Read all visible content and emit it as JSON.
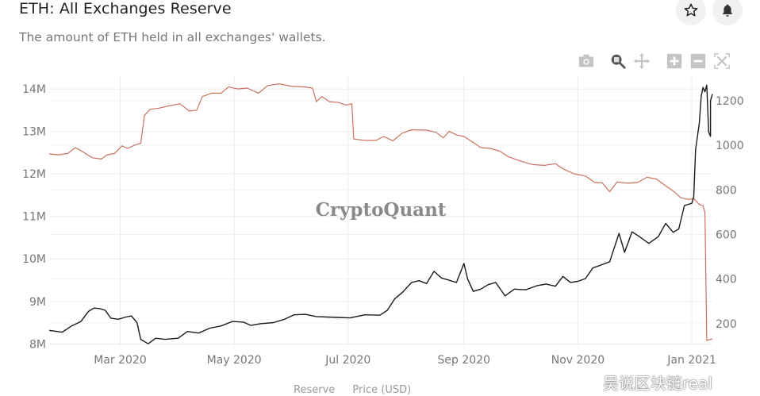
{
  "header": {
    "title": "ETH: All Exchanges Reserve",
    "subtitle": "The amount of ETH held in all exchanges' wallets.",
    "star_icon": "star-icon",
    "bell_icon": "bell-icon"
  },
  "modebar": [
    "camera-icon",
    "zoom-icon",
    "pan-icon",
    "zoom-in-icon",
    "zoom-out-icon",
    "autoscale-icon"
  ],
  "watermark": "CryptoQuant",
  "footer_watermark": "吴说区块链real",
  "colors": {
    "reserve": "#c8725e",
    "price": "#1a1a1a",
    "grid": "#ececec",
    "tick": "#777777"
  },
  "chart_data": {
    "type": "line",
    "title": "ETH: All Exchanges Reserve",
    "x_ticks": [
      "Mar 2020",
      "May 2020",
      "Jul 2020",
      "Sep 2020",
      "Nov 2020",
      "Jan 2021"
    ],
    "x_tick_dates": [
      "2020-03-01",
      "2020-05-01",
      "2020-07-01",
      "2020-09-01",
      "2020-11-01",
      "2021-01-01"
    ],
    "x_range": [
      "2020-01-23",
      "2021-01-12"
    ],
    "y_left": {
      "label": "Reserve",
      "ticks": [
        "8M",
        "9M",
        "10M",
        "11M",
        "12M",
        "13M",
        "14M"
      ],
      "tick_values": [
        8000000,
        9000000,
        10000000,
        11000000,
        12000000,
        13000000,
        14000000
      ],
      "range": [
        7950000,
        14300000
      ]
    },
    "y_right": {
      "label": "Price (USD)",
      "ticks": [
        "200",
        "400",
        "600",
        "800",
        "1000",
        "1200"
      ],
      "tick_values": [
        200,
        400,
        600,
        800,
        1000,
        1200
      ],
      "range": [
        100,
        1310
      ]
    },
    "grid": true,
    "legend": {
      "placement": "bottom",
      "entries": [
        "Reserve",
        "Price (USD)"
      ]
    },
    "series": [
      {
        "name": "Reserve",
        "axis": "left",
        "points": [
          [
            "2020-01-23",
            12470000
          ],
          [
            "2020-01-28",
            12450000
          ],
          [
            "2020-02-02",
            12480000
          ],
          [
            "2020-02-06",
            12620000
          ],
          [
            "2020-02-10",
            12520000
          ],
          [
            "2020-02-15",
            12380000
          ],
          [
            "2020-02-20",
            12350000
          ],
          [
            "2020-02-23",
            12450000
          ],
          [
            "2020-02-27",
            12480000
          ],
          [
            "2020-03-02",
            12660000
          ],
          [
            "2020-03-05",
            12600000
          ],
          [
            "2020-03-09",
            12680000
          ],
          [
            "2020-03-12",
            12720000
          ],
          [
            "2020-03-14",
            13380000
          ],
          [
            "2020-03-17",
            13520000
          ],
          [
            "2020-03-22",
            13550000
          ],
          [
            "2020-03-27",
            13600000
          ],
          [
            "2020-04-02",
            13650000
          ],
          [
            "2020-04-07",
            13480000
          ],
          [
            "2020-04-11",
            13500000
          ],
          [
            "2020-04-14",
            13820000
          ],
          [
            "2020-04-19",
            13900000
          ],
          [
            "2020-04-24",
            13900000
          ],
          [
            "2020-04-28",
            14050000
          ],
          [
            "2020-05-03",
            14000000
          ],
          [
            "2020-05-08",
            14020000
          ],
          [
            "2020-05-14",
            13900000
          ],
          [
            "2020-05-19",
            14080000
          ],
          [
            "2020-05-25",
            14120000
          ],
          [
            "2020-06-01",
            14060000
          ],
          [
            "2020-06-07",
            14050000
          ],
          [
            "2020-06-12",
            14020000
          ],
          [
            "2020-06-14",
            13700000
          ],
          [
            "2020-06-17",
            13820000
          ],
          [
            "2020-06-21",
            13700000
          ],
          [
            "2020-06-26",
            13680000
          ],
          [
            "2020-06-30",
            13620000
          ],
          [
            "2020-07-03",
            13650000
          ],
          [
            "2020-07-04",
            12820000
          ],
          [
            "2020-07-10",
            12790000
          ],
          [
            "2020-07-16",
            12790000
          ],
          [
            "2020-07-20",
            12880000
          ],
          [
            "2020-07-25",
            12780000
          ],
          [
            "2020-07-30",
            12960000
          ],
          [
            "2020-08-04",
            13040000
          ],
          [
            "2020-08-12",
            13030000
          ],
          [
            "2020-08-17",
            12980000
          ],
          [
            "2020-08-21",
            12850000
          ],
          [
            "2020-08-24",
            13000000
          ],
          [
            "2020-08-28",
            12920000
          ],
          [
            "2020-09-01",
            12880000
          ],
          [
            "2020-09-06",
            12740000
          ],
          [
            "2020-09-10",
            12620000
          ],
          [
            "2020-09-15",
            12600000
          ],
          [
            "2020-09-20",
            12540000
          ],
          [
            "2020-09-25",
            12400000
          ],
          [
            "2020-10-02",
            12290000
          ],
          [
            "2020-10-08",
            12220000
          ],
          [
            "2020-10-14",
            12200000
          ],
          [
            "2020-10-20",
            12240000
          ],
          [
            "2020-10-24",
            12120000
          ],
          [
            "2020-10-30",
            12000000
          ],
          [
            "2020-11-05",
            11950000
          ],
          [
            "2020-11-10",
            11800000
          ],
          [
            "2020-11-14",
            11790000
          ],
          [
            "2020-11-18",
            11580000
          ],
          [
            "2020-11-22",
            11810000
          ],
          [
            "2020-11-28",
            11780000
          ],
          [
            "2020-12-03",
            11800000
          ],
          [
            "2020-12-08",
            11920000
          ],
          [
            "2020-12-13",
            11880000
          ],
          [
            "2020-12-18",
            11720000
          ],
          [
            "2020-12-22",
            11600000
          ],
          [
            "2020-12-26",
            11440000
          ],
          [
            "2020-12-30",
            11400000
          ],
          [
            "2021-01-02",
            11420000
          ],
          [
            "2021-01-05",
            11280000
          ],
          [
            "2021-01-07",
            11250000
          ],
          [
            "2021-01-08",
            11100000
          ],
          [
            "2021-01-09",
            8080000
          ],
          [
            "2021-01-12",
            8120000
          ]
        ]
      },
      {
        "name": "Price (USD)",
        "axis": "right",
        "points": [
          [
            "2020-01-23",
            170
          ],
          [
            "2020-01-30",
            162
          ],
          [
            "2020-02-04",
            190
          ],
          [
            "2020-02-09",
            210
          ],
          [
            "2020-02-13",
            255
          ],
          [
            "2020-02-16",
            270
          ],
          [
            "2020-02-19",
            268
          ],
          [
            "2020-02-22",
            260
          ],
          [
            "2020-02-25",
            225
          ],
          [
            "2020-02-29",
            220
          ],
          [
            "2020-03-04",
            230
          ],
          [
            "2020-03-07",
            235
          ],
          [
            "2020-03-10",
            205
          ],
          [
            "2020-03-12",
            130
          ],
          [
            "2020-03-16",
            110
          ],
          [
            "2020-03-20",
            135
          ],
          [
            "2020-03-25",
            130
          ],
          [
            "2020-04-01",
            135
          ],
          [
            "2020-04-06",
            165
          ],
          [
            "2020-04-12",
            158
          ],
          [
            "2020-04-18",
            180
          ],
          [
            "2020-04-24",
            190
          ],
          [
            "2020-04-30",
            210
          ],
          [
            "2020-05-06",
            207
          ],
          [
            "2020-05-10",
            192
          ],
          [
            "2020-05-15",
            200
          ],
          [
            "2020-05-22",
            205
          ],
          [
            "2020-05-28",
            220
          ],
          [
            "2020-06-02",
            240
          ],
          [
            "2020-06-08",
            242
          ],
          [
            "2020-06-14",
            232
          ],
          [
            "2020-06-20",
            230
          ],
          [
            "2020-06-26",
            228
          ],
          [
            "2020-07-02",
            226
          ],
          [
            "2020-07-10",
            240
          ],
          [
            "2020-07-18",
            238
          ],
          [
            "2020-07-22",
            260
          ],
          [
            "2020-07-26",
            312
          ],
          [
            "2020-07-30",
            340
          ],
          [
            "2020-08-04",
            385
          ],
          [
            "2020-08-08",
            393
          ],
          [
            "2020-08-12",
            380
          ],
          [
            "2020-08-16",
            435
          ],
          [
            "2020-08-20",
            405
          ],
          [
            "2020-08-24",
            395
          ],
          [
            "2020-08-28",
            385
          ],
          [
            "2020-09-01",
            470
          ],
          [
            "2020-09-03",
            400
          ],
          [
            "2020-09-06",
            345
          ],
          [
            "2020-09-10",
            355
          ],
          [
            "2020-09-14",
            375
          ],
          [
            "2020-09-18",
            385
          ],
          [
            "2020-09-23",
            325
          ],
          [
            "2020-09-28",
            355
          ],
          [
            "2020-10-04",
            352
          ],
          [
            "2020-10-10",
            370
          ],
          [
            "2020-10-15",
            378
          ],
          [
            "2020-10-20",
            368
          ],
          [
            "2020-10-24",
            412
          ],
          [
            "2020-10-28",
            385
          ],
          [
            "2020-11-01",
            390
          ],
          [
            "2020-11-05",
            402
          ],
          [
            "2020-11-09",
            450
          ],
          [
            "2020-11-14",
            465
          ],
          [
            "2020-11-18",
            478
          ],
          [
            "2020-11-23",
            605
          ],
          [
            "2020-11-26",
            520
          ],
          [
            "2020-11-30",
            612
          ],
          [
            "2020-12-04",
            590
          ],
          [
            "2020-12-09",
            560
          ],
          [
            "2020-12-14",
            590
          ],
          [
            "2020-12-18",
            650
          ],
          [
            "2020-12-22",
            610
          ],
          [
            "2020-12-25",
            625
          ],
          [
            "2020-12-28",
            730
          ],
          [
            "2021-01-01",
            740
          ],
          [
            "2021-01-02",
            770
          ],
          [
            "2021-01-03",
            980
          ],
          [
            "2021-01-05",
            1100
          ],
          [
            "2021-01-06",
            1220
          ],
          [
            "2021-01-07",
            1260
          ],
          [
            "2021-01-08",
            1240
          ],
          [
            "2021-01-09",
            1270
          ],
          [
            "2021-01-10",
            1060
          ],
          [
            "2021-01-11",
            1040
          ],
          [
            "2021-01-11",
            1200
          ],
          [
            "2021-01-12",
            1230
          ]
        ]
      }
    ]
  }
}
